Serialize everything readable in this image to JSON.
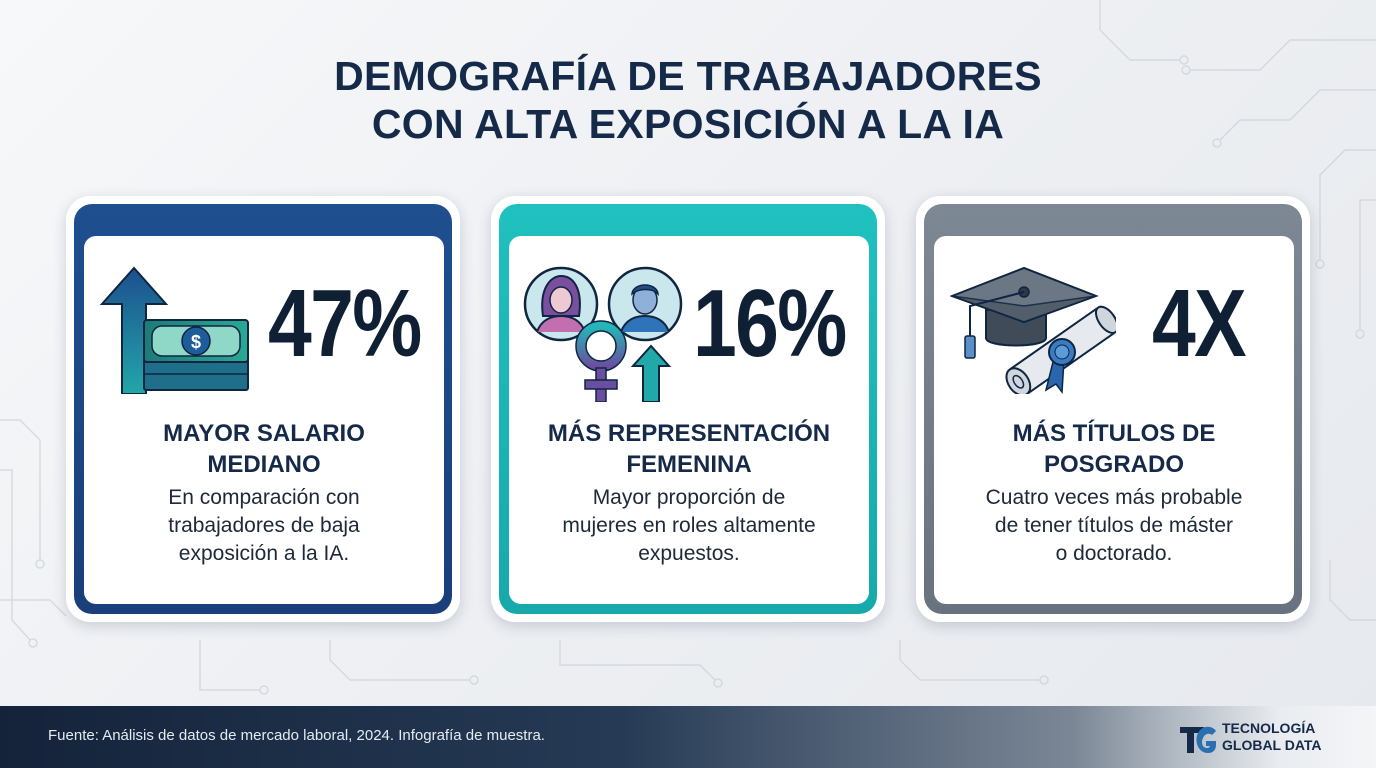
{
  "title": {
    "line1": "DEMOGRAFÍA DE TRABAJADORES",
    "line2": "CON ALTA EXPOSICIÓN A LA IA"
  },
  "cards": [
    {
      "stat": "47%",
      "heading": [
        "MAYOR SALARIO",
        "MEDIANO"
      ],
      "body": [
        "En comparación con",
        "trabajadores de baja",
        "exposición a la IA."
      ],
      "icon": "money-growth-icon",
      "accent": "#1f4f8f"
    },
    {
      "stat": "16%",
      "heading": [
        "MÁS REPRESENTACIÓN",
        "FEMENINA"
      ],
      "body": [
        "Mayor proporción de",
        "mujeres en roles altamente",
        "expuestos."
      ],
      "icon": "female-representation-icon",
      "accent": "#20c1c0"
    },
    {
      "stat": "4X",
      "heading": [
        "MÁS TÍTULOS DE",
        "POSGRADO"
      ],
      "body": [
        "Cuatro veces más probable",
        "de tener títulos de máster",
        "o doctorado."
      ],
      "icon": "graduation-diploma-icon",
      "accent": "#7d8894"
    }
  ],
  "footer": {
    "source": "Fuente: Análisis de datos de mercado laboral, 2024. Infografía de muestra.",
    "brand_line1": "TECNOLOGÍA",
    "brand_line2": "GLOBAL DATA"
  }
}
